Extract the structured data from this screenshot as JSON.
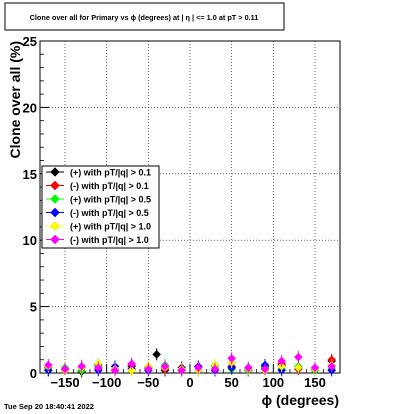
{
  "title": "Clone  over all for Primary vs ϕ (degrees) at |  η | <= 1.0 at pT > 0.11",
  "timestamp": "Tue Sep 20 18:40:41 2022",
  "chart_data": {
    "type": "scatter",
    "xlabel": "ϕ (degrees)",
    "ylabel": "Clone  over all (%)",
    "xlim": [
      -180,
      180
    ],
    "ylim": [
      0,
      25
    ],
    "x_ticks": [
      -150,
      -100,
      -50,
      0,
      50,
      100,
      150
    ],
    "x_tick_labels": [
      "−150",
      "−100",
      "−50",
      "0",
      "50",
      "100",
      "150"
    ],
    "y_ticks": [
      0,
      5,
      10,
      15,
      20,
      25
    ],
    "y_tick_labels": [
      "0",
      "5",
      "10",
      "15",
      "20",
      "25"
    ],
    "grid": true,
    "legend_position": "left-middle",
    "series": [
      {
        "name": "(+) with pT/|q| > 0.1",
        "color": "#000000",
        "marker": "diamond",
        "x": [
          -170,
          -150,
          -130,
          -110,
          -90,
          -70,
          -50,
          -40,
          -30,
          -10,
          10,
          30,
          50,
          70,
          90,
          110,
          130,
          150,
          170
        ],
        "y": [
          0.2,
          0.3,
          0.1,
          0.6,
          0.2,
          0.5,
          0.3,
          1.4,
          0.2,
          0.4,
          0.2,
          0.5,
          0.3,
          0.2,
          0.5,
          0.6,
          0.3,
          0.2,
          0.9
        ]
      },
      {
        "name": "(-) with pT/|q| > 0.1",
        "color": "#ff0000",
        "marker": "diamond",
        "x": [
          -170,
          -150,
          -130,
          -110,
          -90,
          -70,
          -50,
          -30,
          -10,
          10,
          30,
          50,
          70,
          90,
          110,
          130,
          150,
          170
        ],
        "y": [
          0.4,
          0.2,
          0.5,
          0.3,
          0.2,
          0.6,
          0.4,
          0.3,
          0.2,
          0.4,
          0.3,
          0.5,
          0.2,
          0.4,
          0.7,
          0.3,
          0.2,
          1.0
        ]
      },
      {
        "name": "(+) with pT/|q| > 0.5",
        "color": "#00ff00",
        "marker": "diamond",
        "x": [
          -170,
          -150,
          -130,
          -110,
          -90,
          -70,
          -50,
          -30,
          -10,
          10,
          30,
          50,
          70,
          90,
          110,
          130,
          150,
          170
        ],
        "y": [
          0.3,
          0.4,
          0.2,
          0.5,
          0.3,
          0.2,
          0.4,
          0.6,
          0.3,
          0.2,
          0.5,
          0.3,
          0.2,
          0.4,
          0.3,
          0.5,
          0.2,
          0.3
        ]
      },
      {
        "name": "(-) with pT/|q| > 0.5",
        "color": "#0000ff",
        "marker": "diamond",
        "x": [
          -170,
          -150,
          -130,
          -110,
          -90,
          -70,
          -50,
          -30,
          -10,
          10,
          30,
          50,
          70,
          90,
          110,
          130,
          150,
          170
        ],
        "y": [
          0.2,
          0.3,
          0.4,
          0.2,
          0.5,
          0.3,
          0.2,
          0.4,
          0.3,
          0.5,
          0.2,
          0.4,
          0.3,
          0.6,
          0.2,
          0.4,
          0.3,
          0.2
        ]
      },
      {
        "name": "(+) with pT/|q| > 1.0",
        "color": "#ffff00",
        "marker": "diamond",
        "x": [
          -170,
          -150,
          -130,
          -110,
          -90,
          -70,
          -50,
          -30,
          -10,
          10,
          30,
          50,
          70,
          90,
          110,
          130,
          150,
          170
        ],
        "y": [
          0.5,
          0.2,
          0.4,
          0.7,
          0.3,
          0.2,
          0.5,
          0.4,
          0.3,
          0.2,
          0.6,
          0.8,
          0.3,
          0.2,
          0.5,
          0.4,
          0.3,
          0.6
        ]
      },
      {
        "name": "(-) with pT/|q| > 1.0",
        "color": "#ff00ff",
        "marker": "diamond",
        "x": [
          -170,
          -150,
          -130,
          -110,
          -90,
          -70,
          -50,
          -30,
          -10,
          10,
          30,
          50,
          70,
          90,
          110,
          130,
          150,
          170
        ],
        "y": [
          0.6,
          0.3,
          0.5,
          0.4,
          0.2,
          0.7,
          0.3,
          0.5,
          0.2,
          0.4,
          0.3,
          1.1,
          0.4,
          0.3,
          0.9,
          1.2,
          0.4,
          0.5
        ]
      }
    ]
  }
}
